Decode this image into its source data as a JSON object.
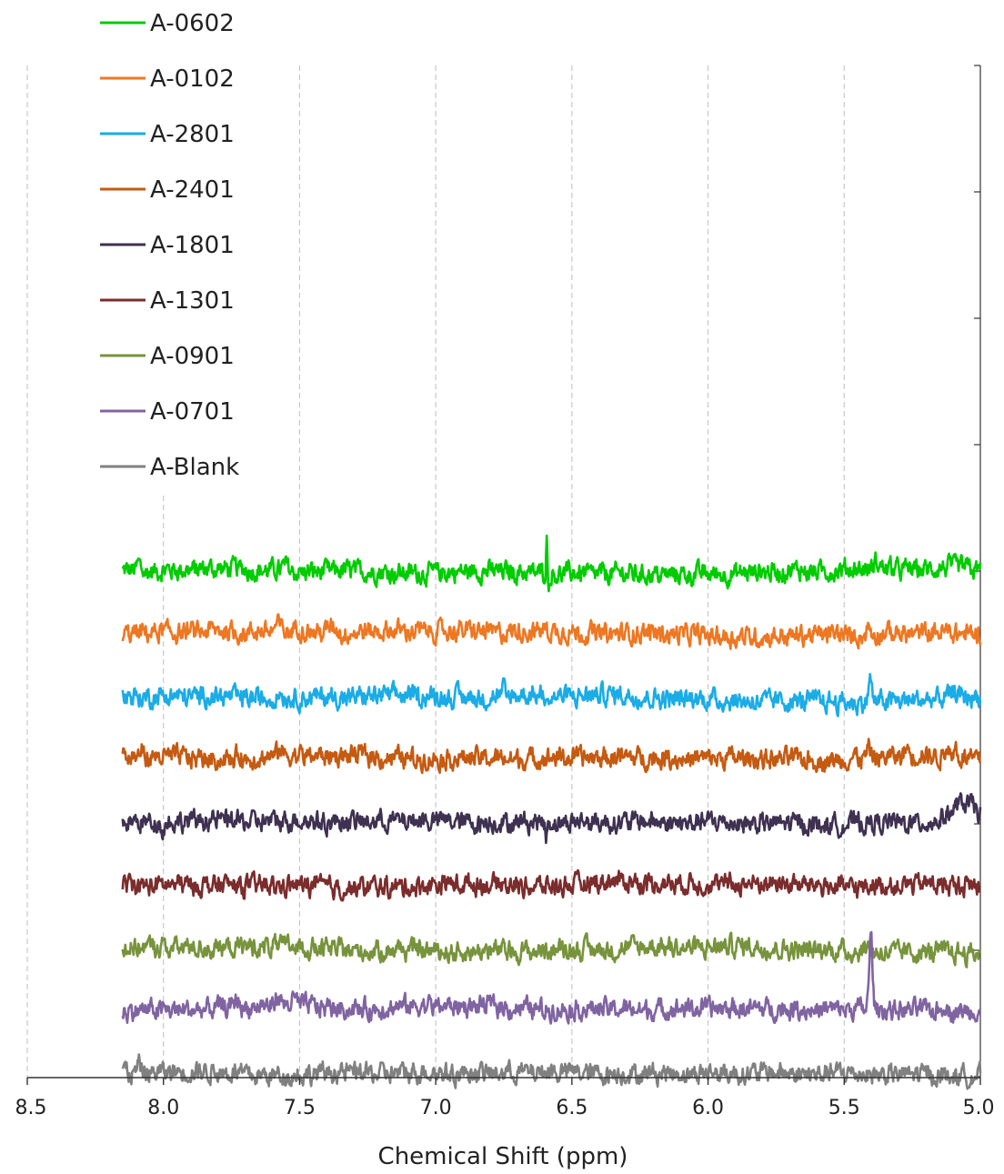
{
  "chart_data": {
    "type": "line",
    "title": "",
    "xlabel": "Chemical Shift (ppm)",
    "ylabel": "",
    "x_reversed": true,
    "xlim": [
      5.0,
      8.5
    ],
    "x_ticks": [
      "8.5",
      "8.0",
      "7.5",
      "7.0",
      "6.5",
      "6.0",
      "5.5",
      "5.0"
    ],
    "x_data_range": [
      5.0,
      8.15
    ],
    "grid": "vertical dashed gridlines",
    "legend_placement": "top-left",
    "series": [
      {
        "name": "A-0602",
        "color": "#00CC00",
        "peaks": [
          {
            "x": 8.09,
            "h": 0.5,
            "w": 0.006
          },
          {
            "x": 7.55,
            "h": 0.35,
            "w": 0.01
          },
          {
            "x": 6.592,
            "h": 2.3,
            "w": 0.003
          },
          {
            "x": 6.585,
            "h": -1.2,
            "w": 0.003
          },
          {
            "x": 5.38,
            "h": 0.4,
            "w": 0.008
          }
        ]
      },
      {
        "name": "A-0102",
        "color": "#EE7722",
        "peaks": [
          {
            "x": 7.58,
            "h": 0.5,
            "w": 0.012
          },
          {
            "x": 7.51,
            "h": 0.4,
            "w": 0.012
          },
          {
            "x": 7.38,
            "h": 0.5,
            "w": 0.012
          },
          {
            "x": 7.34,
            "h": -0.3,
            "w": 0.006
          },
          {
            "x": 6.6,
            "h": 0.25,
            "w": 0.006
          },
          {
            "x": 5.41,
            "h": 0.6,
            "w": 0.006
          }
        ]
      },
      {
        "name": "A-2801",
        "color": "#1AACE6",
        "peaks": [
          {
            "x": 7.57,
            "h": 0.35,
            "w": 0.01
          },
          {
            "x": 6.75,
            "h": 0.45,
            "w": 0.004
          },
          {
            "x": 6.74,
            "h": -0.4,
            "w": 0.004
          },
          {
            "x": 6.59,
            "h": -0.8,
            "w": 0.003
          },
          {
            "x": 5.405,
            "h": 1.6,
            "w": 0.006
          },
          {
            "x": 5.09,
            "h": 0.35,
            "w": 0.008
          }
        ]
      },
      {
        "name": "A-2401",
        "color": "#C55A11",
        "peaks": [
          {
            "x": 8.15,
            "h": 0.5,
            "w": 0.008
          },
          {
            "x": 8.08,
            "h": 0.6,
            "w": 0.006
          },
          {
            "x": 7.72,
            "h": 0.45,
            "w": 0.008
          },
          {
            "x": 7.57,
            "h": 0.55,
            "w": 0.008
          },
          {
            "x": 6.33,
            "h": 0.5,
            "w": 0.004
          },
          {
            "x": 5.41,
            "h": 0.55,
            "w": 0.006
          },
          {
            "x": 5.27,
            "h": 0.6,
            "w": 0.008
          },
          {
            "x": 5.22,
            "h": 0.35,
            "w": 0.008
          },
          {
            "x": 5.12,
            "h": 0.9,
            "w": 0.006
          },
          {
            "x": 5.09,
            "h": 0.8,
            "w": 0.006
          }
        ]
      },
      {
        "name": "A-1801",
        "color": "#3F3151",
        "peaks": [
          {
            "x": 8.0,
            "h": -0.5,
            "w": 0.005
          },
          {
            "x": 6.595,
            "h": -1.1,
            "w": 0.003
          },
          {
            "x": 5.06,
            "h": 1.2,
            "w": 0.05
          }
        ]
      },
      {
        "name": "A-1301",
        "color": "#7B2C2C",
        "peaks": [
          {
            "x": 5.09,
            "h": -0.35,
            "w": 0.004
          }
        ]
      },
      {
        "name": "A-0901",
        "color": "#77933C",
        "peaks": [
          {
            "x": 5.42,
            "h": 0.35,
            "w": 0.01
          }
        ]
      },
      {
        "name": "A-0701",
        "color": "#8064A2",
        "peaks": [
          {
            "x": 7.73,
            "h": 0.6,
            "w": 0.01
          },
          {
            "x": 7.58,
            "h": 0.7,
            "w": 0.01
          },
          {
            "x": 7.52,
            "h": 0.45,
            "w": 0.01
          },
          {
            "x": 5.402,
            "h": 5.0,
            "w": 0.006
          },
          {
            "x": 5.13,
            "h": 0.55,
            "w": 0.008
          }
        ]
      },
      {
        "name": "A-Blank",
        "color": "#808080",
        "peaks": [
          {
            "x": 8.15,
            "h": 0.35,
            "w": 0.008
          },
          {
            "x": 8.09,
            "h": 0.55,
            "w": 0.006
          }
        ]
      }
    ]
  }
}
